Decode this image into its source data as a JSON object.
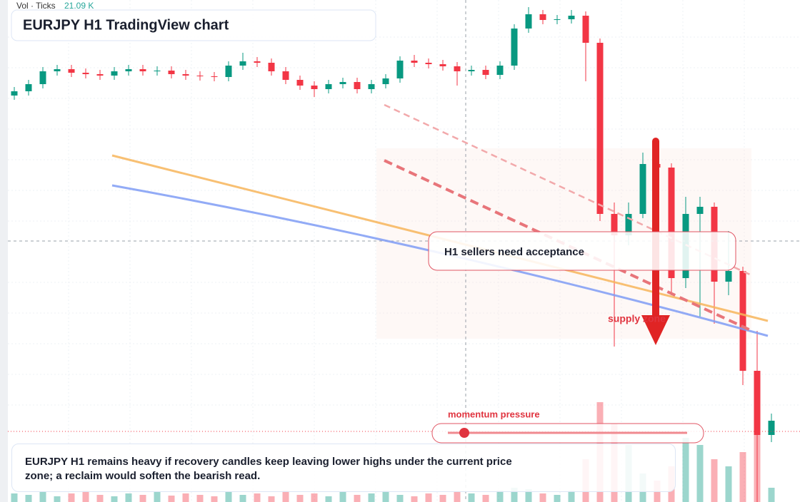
{
  "chart_data": {
    "type": "candlestick",
    "title": "EURJPY H1 TradingView chart",
    "volume_label": "Vol · Ticks",
    "volume_value": "21.09 K",
    "up_color": "#089981",
    "down_color": "#f23645",
    "ylim": [
      0,
      704
    ],
    "volume_lim": [
      0,
      704
    ],
    "open": [
      570,
      576,
      586,
      604,
      607,
      602,
      600,
      598,
      604,
      607,
      604,
      605,
      600,
      598,
      597,
      596,
      612,
      618,
      616,
      604,
      592,
      584,
      579,
      586,
      589,
      579,
      586,
      594,
      619,
      616,
      614,
      611,
      604,
      606,
      599,
      612,
      664,
      684,
      676,
      677,
      682,
      644,
      404,
      374,
      404,
      474,
      469,
      314,
      404,
      414,
      309,
      324,
      184,
      94
    ],
    "high": [
      582,
      592,
      610,
      613,
      613,
      608,
      606,
      610,
      613,
      613,
      611,
      611,
      606,
      604,
      603,
      618,
      630,
      624,
      622,
      610,
      598,
      590,
      592,
      595,
      595,
      592,
      600,
      625,
      627,
      622,
      620,
      617,
      612,
      612,
      618,
      670,
      694,
      690,
      683,
      690,
      688,
      650,
      420,
      420,
      490,
      488,
      475,
      428,
      428,
      420,
      380,
      330,
      240,
      124
    ],
    "low": [
      564,
      570,
      580,
      598,
      596,
      594,
      592,
      592,
      598,
      598,
      598,
      594,
      592,
      591,
      590,
      590,
      606,
      610,
      598,
      586,
      578,
      568,
      573,
      580,
      573,
      573,
      580,
      588,
      610,
      608,
      605,
      584,
      598,
      593,
      593,
      606,
      658,
      670,
      670,
      671,
      590,
      394,
      218,
      360,
      398,
      440,
      290,
      300,
      260,
      250,
      290,
      164,
      0,
      84
    ],
    "close": [
      576,
      586,
      604,
      607,
      602,
      600,
      598,
      604,
      607,
      604,
      605,
      600,
      598,
      597,
      596,
      612,
      618,
      616,
      604,
      592,
      584,
      579,
      586,
      589,
      579,
      586,
      594,
      619,
      616,
      614,
      611,
      604,
      606,
      599,
      612,
      664,
      684,
      676,
      677,
      682,
      644,
      404,
      374,
      404,
      474,
      469,
      314,
      404,
      414,
      309,
      324,
      184,
      94,
      114
    ],
    "volume": [
      12,
      10,
      14,
      8,
      12,
      16,
      10,
      8,
      12,
      10,
      14,
      9,
      12,
      10,
      8,
      14,
      10,
      12,
      8,
      16,
      10,
      12,
      8,
      14,
      10,
      12,
      16,
      10,
      8,
      12,
      10,
      14,
      12,
      10,
      16,
      20,
      18,
      12,
      10,
      16,
      60,
      140,
      110,
      80,
      40,
      30,
      50,
      90,
      80,
      60,
      50,
      70,
      100,
      20
    ]
  },
  "annotations": {
    "callout": "H1 sellers need acceptance",
    "zone_label": "supply zone",
    "slider_label": "momentum pressure",
    "note": "EURJPY H1 remains heavy if recovery candles keep leaving lower highs under the current price zone; a reclaim would soften the bearish read."
  }
}
